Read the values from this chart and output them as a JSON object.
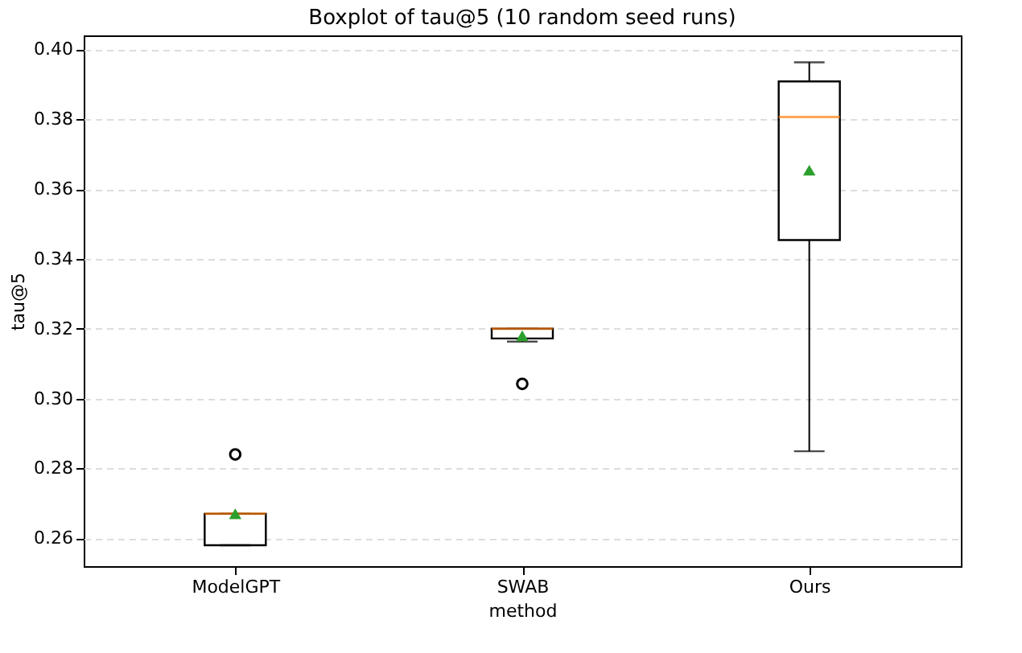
{
  "chart_data": {
    "type": "box",
    "title": "Boxplot of tau@5 (10 random seed runs)",
    "xlabel": "method",
    "ylabel": "tau@5",
    "categories": [
      "ModelGPT",
      "SWAB",
      "Ours"
    ],
    "boxes": [
      {
        "low": 0.258,
        "q1": 0.258,
        "median": 0.267,
        "q3": 0.267,
        "high": 0.267,
        "mean": 0.267,
        "outliers": [
          0.284
        ]
      },
      {
        "low": 0.3163,
        "q1": 0.3172,
        "median": 0.32,
        "q3": 0.32,
        "high": 0.32,
        "mean": 0.318,
        "outliers": [
          0.3042
        ]
      },
      {
        "low": 0.2849,
        "q1": 0.3454,
        "median": 0.3806,
        "q3": 0.3908,
        "high": 0.3963,
        "mean": 0.3654
      }
    ],
    "ylim": [
      0.252,
      0.404
    ],
    "yticks": [
      0.26,
      0.28,
      {
        "value": 0.3,
        "label": "0.30"
      },
      0.32,
      0.34,
      0.36,
      0.38,
      {
        "value": 0.4,
        "label": "0.40"
      }
    ],
    "grid": "y",
    "marker": "triangle"
  }
}
